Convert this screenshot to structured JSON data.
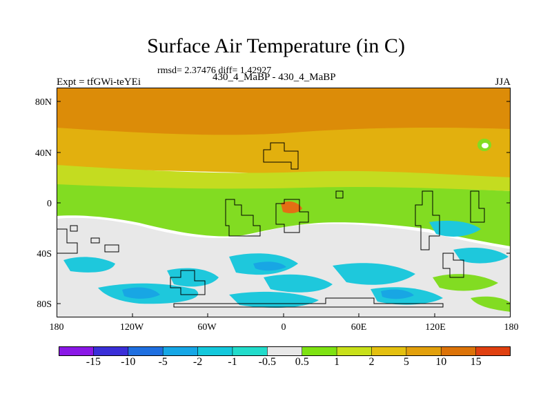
{
  "title": "Surface Air Temperature (in C)",
  "stats": "rmsd= 2.37476 diff= 1.42927",
  "experiment": "Expt = tfGWi-teYEi",
  "case": "430_4_MaBP - 430_4_MaBP",
  "season": "JJA",
  "lat_labels": [
    "80N",
    "40N",
    "0",
    "40S",
    "80S"
  ],
  "lon_labels": [
    "180",
    "120W",
    "60W",
    "0",
    "60E",
    "120E",
    "180"
  ],
  "colorbar": {
    "labels": [
      "-15",
      "-10",
      "-5",
      "-2",
      "-1",
      "-0.5",
      "0.5",
      "1",
      "2",
      "5",
      "10",
      "15"
    ],
    "colors": [
      "#8a18e6",
      "#3a2fd8",
      "#1f6fe0",
      "#16a7e6",
      "#14c8dc",
      "#22dccb",
      "#e8e8e8",
      "#7ee212",
      "#c8e01a",
      "#e4c010",
      "#e2a00c",
      "#dc7308",
      "#e04010"
    ]
  },
  "field_colors": {
    "orange": "#dc8c08",
    "gold": "#e2b00e",
    "yellow": "#c4dc20",
    "green": "#82dc22",
    "neutral": "#e8e8e8",
    "cyan": "#1ec8dc",
    "blue": "#18a6e4",
    "deep_orange": "#e46e14",
    "coast": "#000000"
  }
}
